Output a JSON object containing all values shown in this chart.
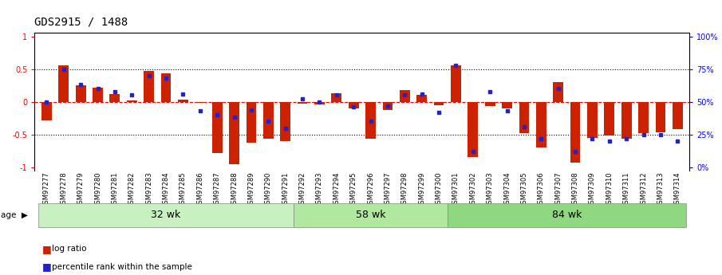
{
  "title": "GDS2915 / 1488",
  "samples": [
    "GSM97277",
    "GSM97278",
    "GSM97279",
    "GSM97280",
    "GSM97281",
    "GSM97282",
    "GSM97283",
    "GSM97284",
    "GSM97285",
    "GSM97286",
    "GSM97287",
    "GSM97288",
    "GSM97289",
    "GSM97290",
    "GSM97291",
    "GSM97292",
    "GSM97293",
    "GSM97294",
    "GSM97295",
    "GSM97296",
    "GSM97297",
    "GSM97298",
    "GSM97299",
    "GSM97300",
    "GSM97301",
    "GSM97302",
    "GSM97303",
    "GSM97304",
    "GSM97305",
    "GSM97306",
    "GSM97307",
    "GSM97308",
    "GSM97309",
    "GSM97310",
    "GSM97311",
    "GSM97312",
    "GSM97313",
    "GSM97314"
  ],
  "log_ratio": [
    -0.28,
    0.55,
    0.25,
    0.22,
    0.12,
    0.02,
    0.47,
    0.43,
    0.03,
    -0.02,
    -0.78,
    -0.95,
    -0.62,
    -0.57,
    -0.6,
    -0.03,
    -0.04,
    0.13,
    -0.1,
    -0.57,
    -0.13,
    0.18,
    0.1,
    -0.05,
    0.55,
    -0.85,
    -0.06,
    -0.1,
    -0.48,
    -0.7,
    0.3,
    -0.93,
    -0.55,
    -0.52,
    -0.57,
    -0.48,
    -0.47,
    -0.42
  ],
  "percentile": [
    0.5,
    0.75,
    0.63,
    0.6,
    0.58,
    0.55,
    0.7,
    0.68,
    0.56,
    0.43,
    0.4,
    0.38,
    0.44,
    0.35,
    0.3,
    0.52,
    0.5,
    0.55,
    0.46,
    0.35,
    0.47,
    0.55,
    0.56,
    0.42,
    0.78,
    0.12,
    0.58,
    0.43,
    0.31,
    0.22,
    0.6,
    0.12,
    0.22,
    0.2,
    0.22,
    0.25,
    0.25,
    0.2
  ],
  "groups": [
    {
      "label": "32 wk",
      "start": 0,
      "end": 15
    },
    {
      "label": "58 wk",
      "start": 15,
      "end": 24
    },
    {
      "label": "84 wk",
      "start": 24,
      "end": 38
    }
  ],
  "group_colors": [
    "#c8f0c0",
    "#b0e8a0",
    "#90d880"
  ],
  "bar_color": "#cc2200",
  "dot_color": "#2222cc",
  "bar_width": 0.6,
  "ylim": [
    -1.05,
    1.05
  ],
  "background_color": "#ffffff",
  "title_fontsize": 10,
  "tick_fontsize": 6,
  "group_label_fontsize": 9
}
